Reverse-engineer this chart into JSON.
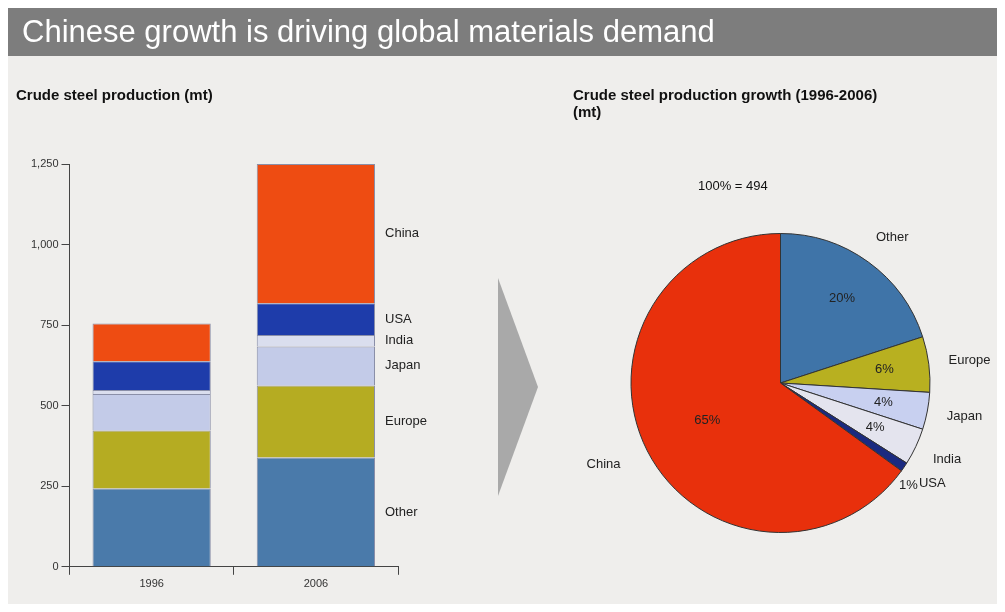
{
  "chart_data": [
    {
      "type": "bar",
      "title": "Chinese growth is driving global materials demand",
      "ylabel": "Crude steel production (mt)",
      "categories": [
        "1996",
        "2006"
      ],
      "stacked": true,
      "series": [
        {
          "name": "Other",
          "color": "#4a7aaa",
          "values": [
            243,
            339
          ]
        },
        {
          "name": "Europe",
          "color": "#b5ac22",
          "values": [
            180,
            224
          ]
        },
        {
          "name": "Japan",
          "color": "#c3cbe8",
          "values": [
            113,
            121
          ]
        },
        {
          "name": "India",
          "color": "#dadeee",
          "values": [
            13,
            35
          ]
        },
        {
          "name": "USA",
          "color": "#1e3caa",
          "values": [
            89,
            99
          ]
        },
        {
          "name": "China",
          "color": "#ee4c12",
          "values": [
            117,
            432
          ]
        }
      ],
      "ylim": [
        0,
        1250
      ],
      "yticks": [
        0,
        {
          "value": 250,
          "label": "250"
        },
        {
          "value": 500,
          "label": "500"
        },
        {
          "value": 750,
          "label": "750"
        },
        {
          "value": 1000,
          "label": "1,000"
        },
        {
          "value": 1250,
          "label": "1,250"
        }
      ],
      "grid": false
    },
    {
      "type": "pie",
      "title": "Crude steel production growth (1996-2006) (mt)",
      "subtitle": "100% = 494",
      "categories": [
        "Other",
        "Europe",
        "Japan",
        "India",
        "USA",
        "China"
      ],
      "values": [
        20,
        6,
        4,
        4,
        1,
        65
      ],
      "colors": [
        "#3f74a8",
        "#b8b020",
        "#c8d0f0",
        "#e4e4ee",
        "#1a2a80",
        "#e8300c"
      ],
      "value_labels": [
        "20%",
        "6%",
        "4%",
        "4%",
        "1%",
        "65%"
      ]
    }
  ]
}
